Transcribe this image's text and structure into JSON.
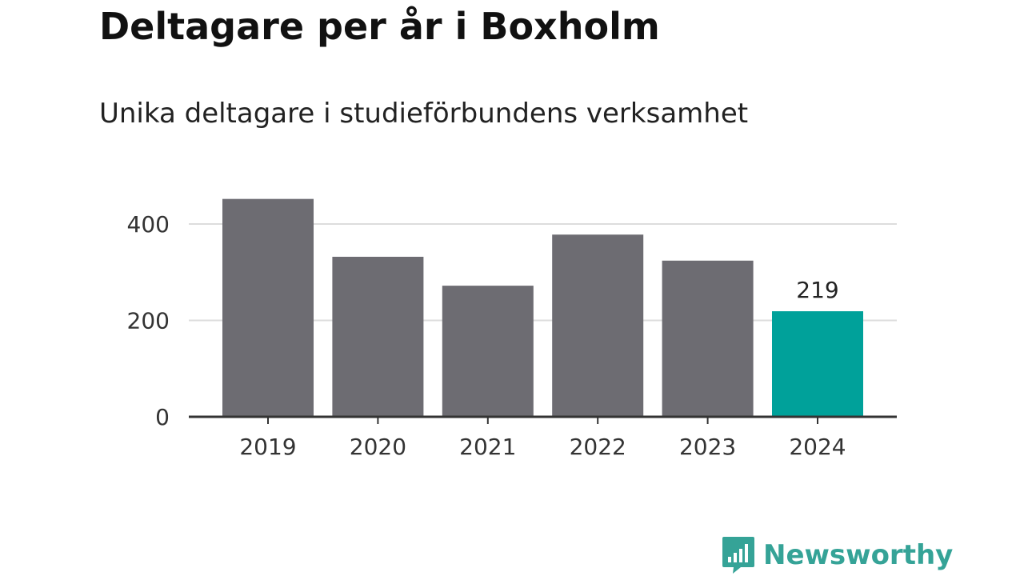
{
  "header": {
    "title": "Deltagare per år i Boxholm",
    "subtitle": "Unika deltagare i studieförbundens verksamhet"
  },
  "brand": {
    "name": "Newsworthy",
    "icon": "newsworthy-logo-icon",
    "color": "#35a397"
  },
  "colors": {
    "bar": "#6d6c72",
    "highlight": "#00a19a",
    "grid": "#dddddd",
    "axis": "#333333"
  },
  "chart_data": {
    "type": "bar",
    "title": "Deltagare per år i Boxholm",
    "subtitle": "Unika deltagare i studieförbundens verksamhet",
    "xlabel": "",
    "ylabel": "",
    "categories": [
      "2019",
      "2020",
      "2021",
      "2022",
      "2023",
      "2024"
    ],
    "values": [
      452,
      332,
      272,
      378,
      324,
      219
    ],
    "highlight_index": 5,
    "data_labels": [
      {
        "index": 5,
        "text": "219"
      }
    ],
    "ylim": [
      0,
      460
    ],
    "yticks": [
      0,
      200,
      400
    ],
    "grid": true,
    "legend": "none"
  }
}
